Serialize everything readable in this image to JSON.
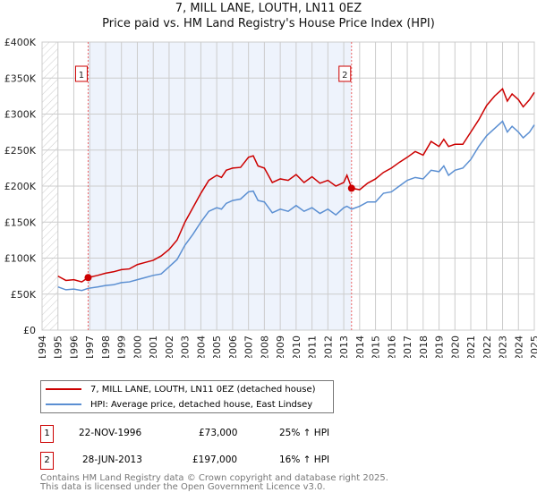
{
  "chart_data": {
    "type": "line",
    "title": "7, MILL LANE, LOUTH, LN11 0EZ",
    "subtitle": "Price paid vs. HM Land Registry's House Price Index (HPI)",
    "xlim": [
      1994,
      2025
    ],
    "ylim": [
      0,
      400000
    ],
    "x_ticks": [
      "1994",
      "1995",
      "1996",
      "1997",
      "1998",
      "1999",
      "2000",
      "2001",
      "2002",
      "2003",
      "2004",
      "2005",
      "2006",
      "2007",
      "2008",
      "2009",
      "2010",
      "2011",
      "2012",
      "2013",
      "2014",
      "2015",
      "2016",
      "2017",
      "2018",
      "2019",
      "2020",
      "2021",
      "2022",
      "2023",
      "2024",
      "2025"
    ],
    "y_ticks": [
      {
        "v": 0,
        "l": "£0"
      },
      {
        "v": 50000,
        "l": "£50K"
      },
      {
        "v": 100000,
        "l": "£100K"
      },
      {
        "v": 150000,
        "l": "£150K"
      },
      {
        "v": 200000,
        "l": "£200K"
      },
      {
        "v": 250000,
        "l": "£250K"
      },
      {
        "v": 300000,
        "l": "£300K"
      },
      {
        "v": 350000,
        "l": "£350K"
      },
      {
        "v": 400000,
        "l": "£400K"
      }
    ],
    "grid": true,
    "series": [
      {
        "name": "7, MILL LANE, LOUTH, LN11 0EZ (detached house)",
        "color": "#cc0000",
        "x": [
          1995,
          1995.5,
          1996,
          1996.5,
          1996.9,
          1997.5,
          1998,
          1998.5,
          1999,
          1999.5,
          2000,
          2000.5,
          2001,
          2001.5,
          2002,
          2002.5,
          2003,
          2003.5,
          2004,
          2004.5,
          2005,
          2005.3,
          2005.6,
          2006,
          2006.5,
          2007,
          2007.3,
          2007.6,
          2008,
          2008.5,
          2009,
          2009.5,
          2010,
          2010.5,
          2011,
          2011.5,
          2012,
          2012.5,
          2013,
          2013.2,
          2013.5,
          2014,
          2014.5,
          2015,
          2015.5,
          2016,
          2016.5,
          2017,
          2017.5,
          2018,
          2018.5,
          2019,
          2019.3,
          2019.6,
          2020,
          2020.5,
          2021,
          2021.5,
          2022,
          2022.5,
          2023,
          2023.3,
          2023.6,
          2024,
          2024.3,
          2024.7,
          2025
        ],
        "y": [
          75000,
          69000,
          70000,
          67000,
          73000,
          76000,
          79000,
          81000,
          84000,
          85000,
          91000,
          94000,
          97000,
          103000,
          112000,
          125000,
          150000,
          170000,
          190000,
          208000,
          215000,
          212000,
          222000,
          225000,
          226000,
          240000,
          242000,
          228000,
          225000,
          205000,
          210000,
          208000,
          216000,
          205000,
          213000,
          204000,
          208000,
          200000,
          205000,
          215000,
          197000,
          195000,
          204000,
          210000,
          219000,
          225000,
          233000,
          240000,
          248000,
          243000,
          262000,
          255000,
          265000,
          255000,
          258000,
          258000,
          275000,
          292000,
          312000,
          325000,
          335000,
          318000,
          328000,
          320000,
          310000,
          320000,
          330000
        ]
      },
      {
        "name": "HPI: Average price, detached house, East Lindsey",
        "color": "#5b8fd2",
        "x": [
          1995,
          1995.5,
          1996,
          1996.5,
          1996.9,
          1997.5,
          1998,
          1998.5,
          1999,
          1999.5,
          2000,
          2000.5,
          2001,
          2001.5,
          2002,
          2002.5,
          2003,
          2003.5,
          2004,
          2004.5,
          2005,
          2005.3,
          2005.6,
          2006,
          2006.5,
          2007,
          2007.3,
          2007.6,
          2008,
          2008.5,
          2009,
          2009.5,
          2010,
          2010.5,
          2011,
          2011.5,
          2012,
          2012.5,
          2013,
          2013.2,
          2013.5,
          2014,
          2014.5,
          2015,
          2015.5,
          2016,
          2016.5,
          2017,
          2017.5,
          2018,
          2018.5,
          2019,
          2019.3,
          2019.6,
          2020,
          2020.5,
          2021,
          2021.5,
          2022,
          2022.5,
          2023,
          2023.3,
          2023.6,
          2024,
          2024.3,
          2024.7,
          2025
        ],
        "y": [
          60000,
          56000,
          57000,
          55000,
          58000,
          60000,
          62000,
          63000,
          66000,
          67000,
          70000,
          73000,
          76000,
          78000,
          88000,
          98000,
          118000,
          133000,
          150000,
          165000,
          170000,
          168000,
          176000,
          180000,
          182000,
          192000,
          193000,
          180000,
          178000,
          163000,
          168000,
          165000,
          173000,
          165000,
          170000,
          162000,
          168000,
          160000,
          170000,
          172000,
          168000,
          172000,
          178000,
          178000,
          190000,
          192000,
          200000,
          208000,
          212000,
          210000,
          222000,
          220000,
          228000,
          215000,
          222000,
          225000,
          237000,
          255000,
          270000,
          280000,
          290000,
          275000,
          283000,
          275000,
          267000,
          275000,
          285000
        ]
      }
    ],
    "sales": [
      {
        "n": "1",
        "x": 1996.9,
        "y": 73000
      },
      {
        "n": "2",
        "x": 2013.49,
        "y": 197000
      }
    ],
    "shaded_range": [
      1996.9,
      2013.49
    ],
    "hatched_range": [
      1994,
      1995
    ]
  },
  "legend": {
    "property": "7, MILL LANE, LOUTH, LN11 0EZ (detached house)",
    "hpi": "HPI: Average price, detached house, East Lindsey"
  },
  "transactions": [
    {
      "n": "1",
      "date": "22-NOV-1996",
      "price": "£73,000",
      "hpi": "25% ↑ HPI"
    },
    {
      "n": "2",
      "date": "28-JUN-2013",
      "price": "£197,000",
      "hpi": "16% ↑ HPI"
    }
  ],
  "footer": {
    "line1": "Contains HM Land Registry data © Crown copyright and database right 2025.",
    "line2": "This data is licensed under the Open Government Licence v3.0."
  }
}
